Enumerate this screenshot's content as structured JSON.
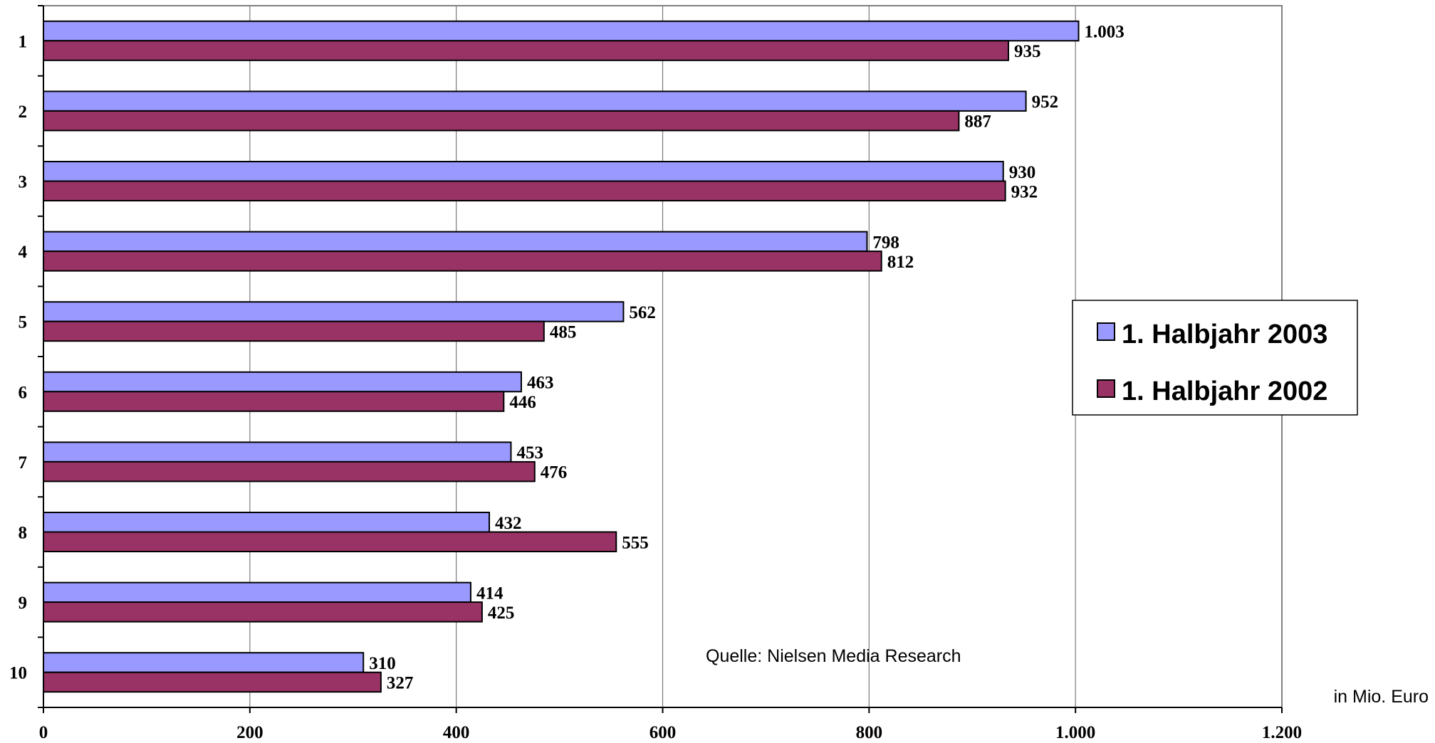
{
  "chart_data": {
    "type": "bar",
    "orientation": "horizontal",
    "categories": [
      "1",
      "2",
      "3",
      "4",
      "5",
      "6",
      "7",
      "8",
      "9",
      "10"
    ],
    "series": [
      {
        "name": "1. Halbjahr 2003",
        "color": "#9999ff",
        "values": [
          1003,
          952,
          930,
          798,
          562,
          463,
          453,
          432,
          414,
          310
        ],
        "labels": [
          "1.003",
          "952",
          "930",
          "798",
          "562",
          "463",
          "453",
          "432",
          "414",
          "310"
        ]
      },
      {
        "name": "1. Halbjahr 2002",
        "color": "#993366",
        "values": [
          935,
          887,
          932,
          812,
          485,
          446,
          476,
          555,
          425,
          327
        ],
        "labels": [
          "935",
          "887",
          "932",
          "812",
          "485",
          "446",
          "476",
          "555",
          "425",
          "327"
        ]
      }
    ],
    "xlim": [
      0,
      1200
    ],
    "x_ticks": [
      0,
      200,
      400,
      600,
      800,
      1000,
      1200
    ],
    "x_tick_labels": [
      "0",
      "200",
      "400",
      "600",
      "800",
      "1.000",
      "1.200"
    ],
    "unit_label": "in Mio. Euro",
    "source_note": "Quelle: Nielsen Media Research",
    "grid": "vertical",
    "legend_position": "right"
  }
}
